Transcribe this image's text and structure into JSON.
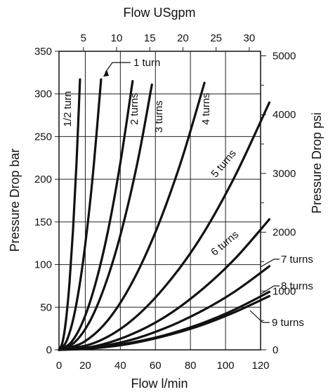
{
  "chart_data": {
    "type": "line",
    "title": "",
    "xlabel": "Flow l/min",
    "ylabel": "Pressure Drop bar",
    "x2label": "Flow USgpm",
    "y2label": "Pressure Drop psi",
    "xlim": [
      0,
      120
    ],
    "ylim": [
      0,
      350
    ],
    "x_ticks": [
      20,
      40,
      60,
      80,
      100,
      120
    ],
    "y_ticks": [
      0,
      50,
      100,
      150,
      200,
      250,
      300,
      350
    ],
    "x2_ticks": [
      5,
      10,
      15,
      20,
      25,
      30
    ],
    "y2_ticks": [
      0,
      1000,
      2000,
      3000,
      4000,
      5000
    ],
    "grid": true,
    "series": [
      {
        "name": "1/2 turn",
        "x": [
          0,
          2,
          4,
          6,
          8,
          10,
          12
        ],
        "y": [
          0,
          9,
          35,
          79,
          141,
          220,
          317
        ]
      },
      {
        "name": "1 turn",
        "x": [
          0,
          4,
          8,
          12,
          16,
          20,
          24
        ],
        "y": [
          0,
          9,
          35,
          79,
          141,
          220,
          317
        ]
      },
      {
        "name": "2 turns",
        "x": [
          0,
          7,
          14,
          21,
          28,
          35,
          42
        ],
        "y": [
          0,
          9,
          35,
          79,
          140,
          219,
          315
        ]
      },
      {
        "name": "3 turns",
        "x": [
          0,
          9,
          18,
          27,
          36,
          45,
          53
        ],
        "y": [
          0,
          9,
          35,
          80,
          142,
          222,
          311
        ]
      },
      {
        "name": "4 turns",
        "x": [
          0,
          14,
          28,
          42,
          56,
          70,
          83
        ],
        "y": [
          0,
          9,
          35,
          80,
          143,
          223,
          313
        ]
      },
      {
        "name": "5 turns",
        "x": [
          0,
          20,
          40,
          60,
          80,
          100,
          120
        ],
        "y": [
          0,
          8,
          32,
          73,
          129,
          202,
          290
        ]
      },
      {
        "name": "6 turns",
        "x": [
          0,
          20,
          40,
          60,
          80,
          100,
          120
        ],
        "y": [
          0,
          4,
          17,
          38,
          68,
          106,
          153
        ]
      },
      {
        "name": "7 turns",
        "x": [
          0,
          20,
          40,
          60,
          80,
          100,
          120
        ],
        "y": [
          0,
          3,
          11,
          25,
          44,
          68,
          98
        ]
      },
      {
        "name": "8 turns",
        "x": [
          0,
          20,
          40,
          60,
          80,
          100,
          120
        ],
        "y": [
          0,
          2,
          8,
          17,
          30,
          47,
          68
        ]
      },
      {
        "name": "9 turns",
        "x": [
          0,
          20,
          40,
          60,
          80,
          100,
          120
        ],
        "y": [
          0,
          2,
          7,
          16,
          28,
          44,
          63
        ]
      }
    ]
  }
}
